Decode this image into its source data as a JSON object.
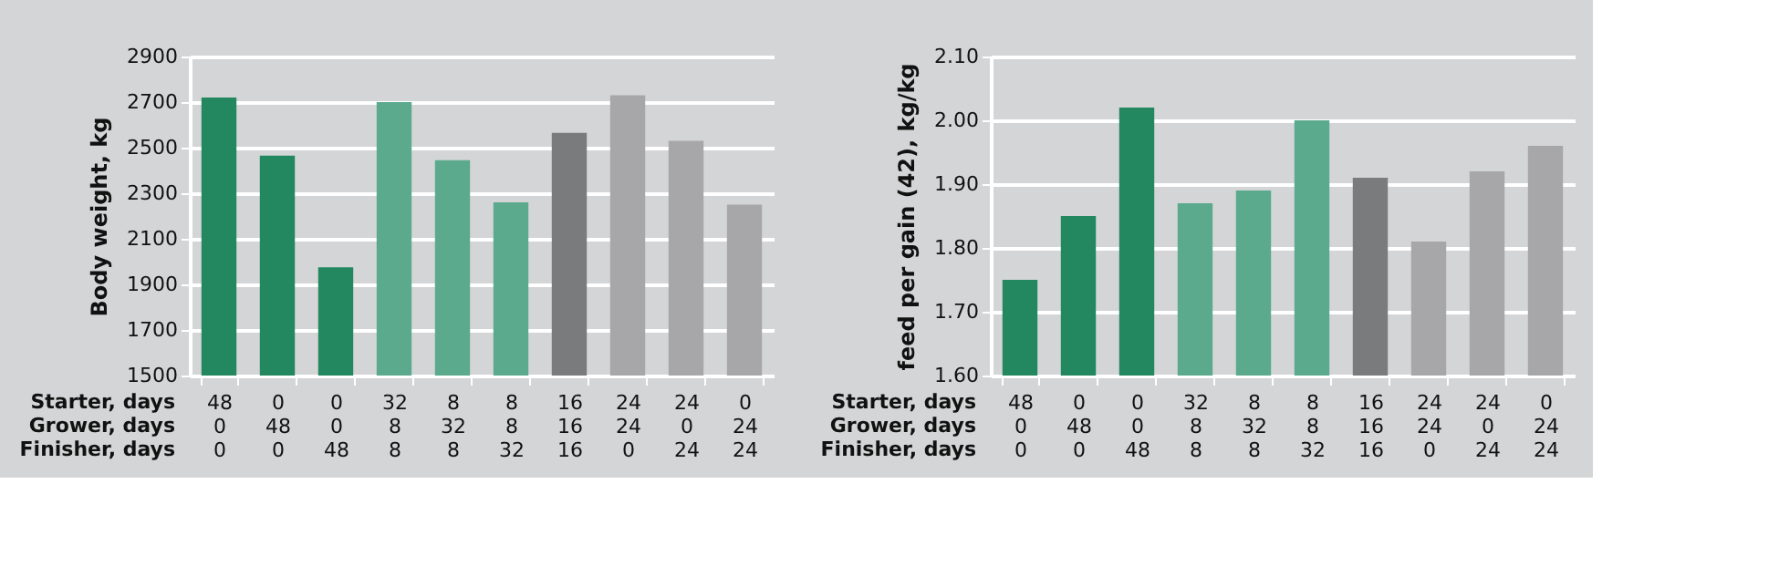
{
  "chart_data": [
    {
      "type": "bar",
      "ylabel": "Body weight, kg",
      "categories": [
        "48\n0\n0",
        "0\n48\n0",
        "0\n0\n48",
        "32\n8\n8",
        "8\n32\n8",
        "8\n8\n32",
        "16\n16\n16",
        "24\n24\n0",
        "24\n0\n24",
        "0\n24\n24"
      ],
      "values": [
        2720,
        2465,
        1975,
        2700,
        2445,
        2260,
        2565,
        2730,
        2530,
        2250
      ],
      "colors": [
        "#23875f",
        "#23875f",
        "#23875f",
        "#5baa8e",
        "#5baa8e",
        "#5baa8e",
        "#7a7b7d",
        "#a7a7aa",
        "#a7a7aa",
        "#a7a7aa"
      ],
      "ylim": [
        1500,
        2900
      ],
      "yticks": [
        1500,
        1700,
        1900,
        2100,
        2300,
        2500,
        2700,
        2900
      ],
      "grid": "y",
      "annotations": [
        "Starter, days",
        "Grower, days",
        "Finisher, days"
      ]
    },
    {
      "type": "bar",
      "ylabel": "feed per gain (42), kg/kg",
      "categories": [
        "48\n0\n0",
        "0\n48\n0",
        "0\n0\n48",
        "32\n8\n8",
        "8\n32\n8",
        "8\n8\n32",
        "16\n16\n16",
        "24\n24\n0",
        "24\n0\n24",
        "0\n24\n24"
      ],
      "values": [
        1.75,
        1.85,
        2.02,
        1.87,
        1.89,
        2.0,
        1.91,
        1.81,
        1.92,
        1.96
      ],
      "colors": [
        "#23875f",
        "#23875f",
        "#23875f",
        "#5baa8e",
        "#5baa8e",
        "#5baa8e",
        "#7a7b7d",
        "#a7a7aa",
        "#a7a7aa",
        "#a7a7aa"
      ],
      "ylim": [
        1.6,
        2.1
      ],
      "yticks": [
        {
          "value": 1.6,
          "label": "1.60"
        },
        {
          "value": 1.7,
          "label": "1.70"
        },
        {
          "value": 1.8,
          "label": "1.80"
        },
        {
          "value": 1.9,
          "label": "1.90"
        },
        {
          "value": 2.0,
          "label": "2.00"
        },
        {
          "value": 2.1,
          "label": "2.10"
        }
      ],
      "grid": "y",
      "annotations": [
        "Starter, days",
        "Grower, days",
        "Finisher, days"
      ]
    }
  ]
}
